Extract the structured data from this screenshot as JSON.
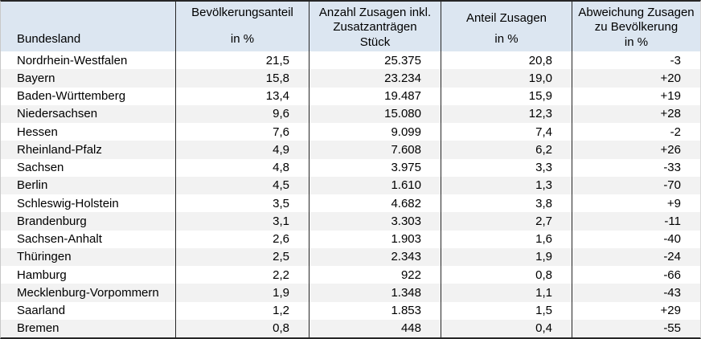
{
  "colors": {
    "header_bg": "#dce6f1",
    "row_stripe": "#f2f2f2",
    "grid_border": "#262626",
    "text": "#000000"
  },
  "table": {
    "columns": [
      {
        "title": "",
        "unit": "Bundesland"
      },
      {
        "title": "Bevölkerungsanteil",
        "unit": "in %"
      },
      {
        "title": "Anzahl Zusagen inkl. Zusatzanträgen",
        "unit": "Stück"
      },
      {
        "title": "Anteil Zusagen",
        "unit": "in %"
      },
      {
        "title": "Abweichung Zusagen zu Bevölkerung",
        "unit": "in %"
      }
    ],
    "rows": [
      [
        "Nordrhein-Westfalen",
        "21,5",
        "25.375",
        "20,8",
        "-3"
      ],
      [
        "Bayern",
        "15,8",
        "23.234",
        "19,0",
        "+20"
      ],
      [
        "Baden-Württemberg",
        "13,4",
        "19.487",
        "15,9",
        "+19"
      ],
      [
        "Niedersachsen",
        "9,6",
        "15.080",
        "12,3",
        "+28"
      ],
      [
        "Hessen",
        "7,6",
        "9.099",
        "7,4",
        "-2"
      ],
      [
        "Rheinland-Pfalz",
        "4,9",
        "7.608",
        "6,2",
        "+26"
      ],
      [
        "Sachsen",
        "4,8",
        "3.975",
        "3,3",
        "-33"
      ],
      [
        "Berlin",
        "4,5",
        "1.610",
        "1,3",
        "-70"
      ],
      [
        "Schleswig-Holstein",
        "3,5",
        "4.682",
        "3,8",
        "+9"
      ],
      [
        "Brandenburg",
        "3,1",
        "3.303",
        "2,7",
        "-11"
      ],
      [
        "Sachsen-Anhalt",
        "2,6",
        "1.903",
        "1,6",
        "-40"
      ],
      [
        "Thüringen",
        "2,5",
        "2.343",
        "1,9",
        "-24"
      ],
      [
        "Hamburg",
        "2,2",
        "922",
        "0,8",
        "-66"
      ],
      [
        "Mecklenburg-Vorpommern",
        "1,9",
        "1.348",
        "1,1",
        "-43"
      ],
      [
        "Saarland",
        "1,2",
        "1.853",
        "1,5",
        "+29"
      ],
      [
        "Bremen",
        "0,8",
        "448",
        "0,4",
        "-55"
      ]
    ]
  }
}
